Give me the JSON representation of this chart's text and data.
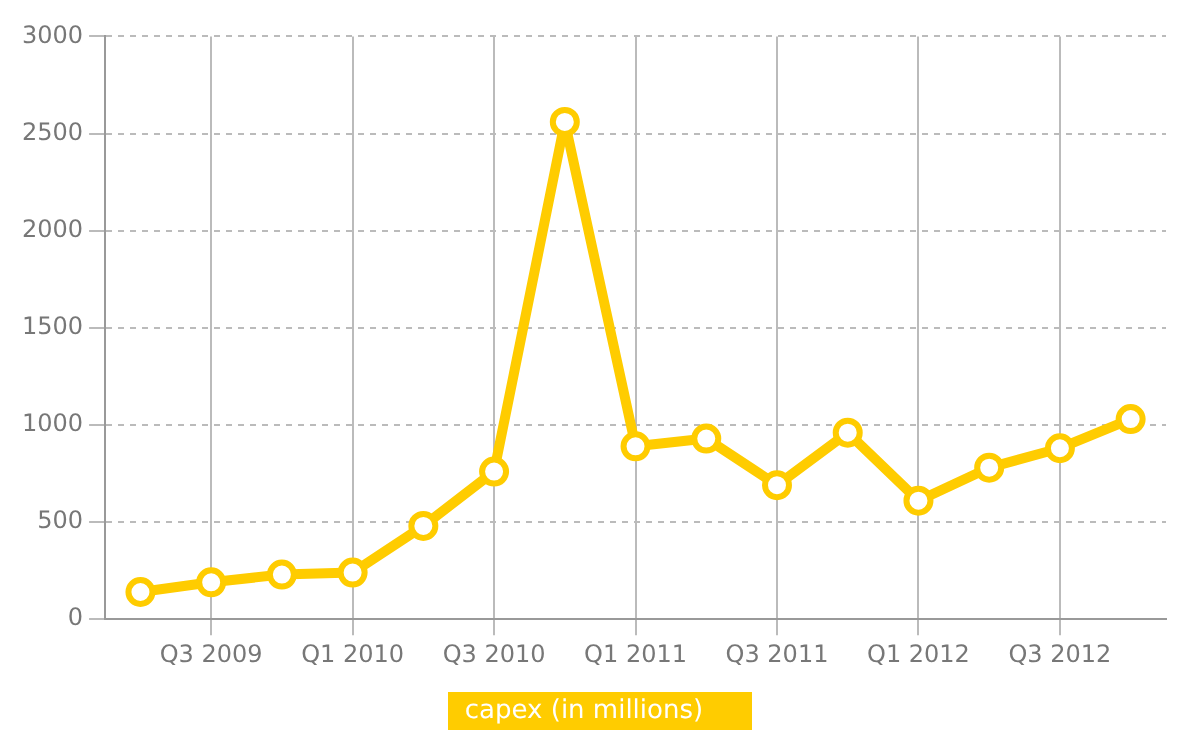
{
  "chart_data": {
    "type": "line",
    "categories": [
      null,
      "Q3 2009",
      null,
      "Q1 2010",
      null,
      "Q3 2010",
      null,
      "Q1 2011",
      null,
      "Q3 2011",
      null,
      "Q1 2012",
      null,
      "Q3 2012",
      null
    ],
    "series": [
      {
        "name": "capex (in millions)",
        "color": "#ffcc00",
        "values": [
          140,
          190,
          230,
          240,
          480,
          760,
          2560,
          890,
          930,
          690,
          960,
          610,
          780,
          880,
          1030
        ]
      }
    ],
    "ylim": [
      0,
      3000
    ],
    "yticks": [
      0,
      500,
      1000,
      1500,
      2000,
      2500,
      3000
    ],
    "grid": true,
    "legend": "bottom",
    "marker": "circle",
    "line_style": "solid"
  }
}
